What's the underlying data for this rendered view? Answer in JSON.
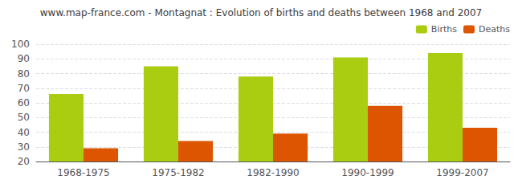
{
  "chart_data": {
    "type": "bar",
    "title": "www.map-france.com - Montagnat : Evolution of births and deaths between 1968 and 2007",
    "categories": [
      "1968-1975",
      "1975-1982",
      "1982-1990",
      "1990-1999",
      "1999-2007"
    ],
    "series": [
      {
        "name": "Births",
        "color": "#aacc11",
        "values": [
          66,
          85,
          78,
          91,
          94
        ]
      },
      {
        "name": "Deaths",
        "color": "#dd5500",
        "values": [
          29,
          34,
          39,
          58,
          43
        ]
      }
    ],
    "ylim": [
      20,
      100
    ],
    "yticks": [
      20,
      30,
      40,
      50,
      60,
      70,
      80,
      90,
      100
    ],
    "grid": true,
    "legend": "upper right"
  }
}
